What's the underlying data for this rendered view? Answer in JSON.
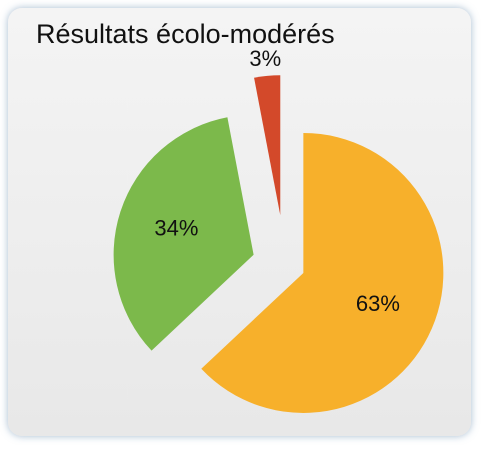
{
  "chart_data": {
    "type": "pie",
    "title": "Résultats écolo-modérés",
    "values": [
      63,
      34,
      3
    ],
    "value_labels": [
      "63%",
      "34%",
      "3%"
    ],
    "colors": [
      "#f7b02b",
      "#7cb94b",
      "#d3492a"
    ]
  }
}
